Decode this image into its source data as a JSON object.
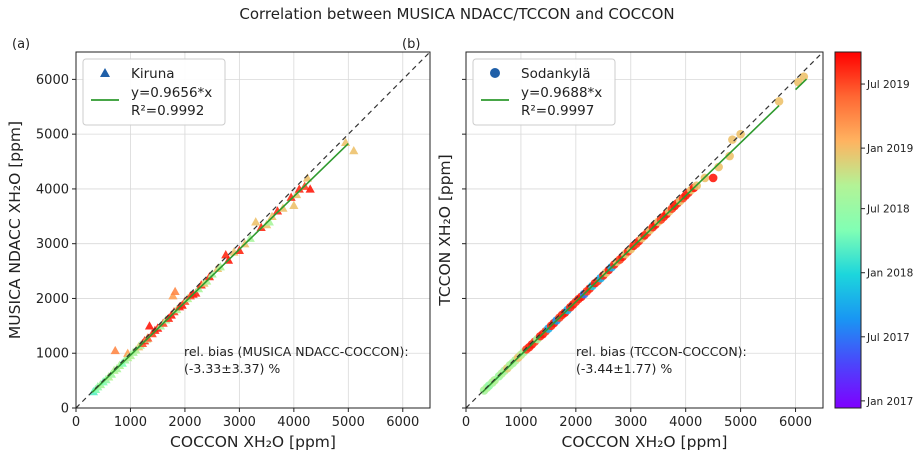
{
  "title": "Correlation between MUSICA NDACC/TCCON and COCCON",
  "chart_data": [
    {
      "type": "scatter",
      "panel_label": "(a)",
      "xlabel": "COCCON XH₂O [ppm]",
      "ylabel": "MUSICA NDACC XH₂O [ppm]",
      "xlim": [
        0,
        6500
      ],
      "ylim": [
        0,
        6500
      ],
      "xticks": [
        "0",
        "1000",
        "2000",
        "3000",
        "4000",
        "5000",
        "6000"
      ],
      "yticks": [
        "0",
        "1000",
        "2000",
        "3000",
        "4000",
        "5000",
        "6000"
      ],
      "grid": true,
      "legend_position": "top-left",
      "marker": "triangle",
      "series_name": "Kiruna",
      "fit_label": "y=0.9656*x",
      "r2_label": "R²=0.9992",
      "slope": 0.9656,
      "fit_range": [
        300,
        5000
      ],
      "identity_line": true,
      "annotation_line1": "rel. bias (MUSICA NDACC-COCCON):",
      "annotation_line2": "(-3.33±3.37) %",
      "points": [
        [
          320,
          300,
          0.45
        ],
        [
          360,
          340,
          0.5
        ],
        [
          400,
          390,
          0.55
        ],
        [
          450,
          430,
          0.6
        ],
        [
          500,
          480,
          0.5
        ],
        [
          550,
          520,
          0.55
        ],
        [
          600,
          570,
          0.62
        ],
        [
          650,
          620,
          0.58
        ],
        [
          700,
          690,
          0.62
        ],
        [
          720,
          1050,
          0.82
        ],
        [
          750,
          720,
          0.6
        ],
        [
          800,
          780,
          0.62
        ],
        [
          850,
          820,
          0.5
        ],
        [
          900,
          880,
          0.58
        ],
        [
          950,
          1000,
          0.78
        ],
        [
          950,
          920,
          0.62
        ],
        [
          1000,
          960,
          0.62
        ],
        [
          1050,
          1020,
          0.6
        ],
        [
          1100,
          1060,
          0.62
        ],
        [
          1150,
          1120,
          0.72
        ],
        [
          1180,
          1150,
          0.6
        ],
        [
          1220,
          1180,
          0.9
        ],
        [
          1260,
          1230,
          0.95
        ],
        [
          1300,
          1260,
          0.65
        ],
        [
          1320,
          1280,
          0.9
        ],
        [
          1350,
          1500,
          0.97
        ],
        [
          1400,
          1360,
          0.92
        ],
        [
          1450,
          1420,
          0.95
        ],
        [
          1500,
          1460,
          0.97
        ],
        [
          1550,
          1500,
          0.6
        ],
        [
          1600,
          1550,
          0.92
        ],
        [
          1650,
          1610,
          0.62
        ],
        [
          1700,
          1640,
          0.95
        ],
        [
          1750,
          1700,
          0.97
        ],
        [
          1780,
          2050,
          0.78
        ],
        [
          1800,
          1760,
          0.92
        ],
        [
          1820,
          2130,
          0.82
        ],
        [
          1850,
          1800,
          0.62
        ],
        [
          1900,
          1850,
          0.95
        ],
        [
          1950,
          1880,
          0.97
        ],
        [
          2000,
          1950,
          0.9
        ],
        [
          2050,
          2000,
          0.62
        ],
        [
          2100,
          2050,
          0.92
        ],
        [
          2150,
          2080,
          0.97
        ],
        [
          2200,
          2100,
          0.95
        ],
        [
          2250,
          2180,
          0.6
        ],
        [
          2300,
          2250,
          0.95
        ],
        [
          2350,
          2280,
          0.72
        ],
        [
          2400,
          2320,
          0.62
        ],
        [
          2450,
          2400,
          0.95
        ],
        [
          2500,
          2450,
          0.6
        ],
        [
          2600,
          2550,
          0.72
        ],
        [
          2650,
          2580,
          0.62
        ],
        [
          2750,
          2800,
          0.95
        ],
        [
          2800,
          2700,
          0.97
        ],
        [
          2900,
          2850,
          0.72
        ],
        [
          3000,
          2880,
          0.95
        ],
        [
          3100,
          3000,
          0.72
        ],
        [
          3200,
          3100,
          0.6
        ],
        [
          3300,
          3400,
          0.72
        ],
        [
          3400,
          3300,
          0.95
        ],
        [
          3500,
          3350,
          0.72
        ],
        [
          3550,
          3400,
          0.6
        ],
        [
          3600,
          3500,
          0.72
        ],
        [
          3700,
          3600,
          0.95
        ],
        [
          3800,
          3650,
          0.72
        ],
        [
          3950,
          3850,
          0.95
        ],
        [
          4000,
          3700,
          0.72
        ],
        [
          4050,
          3900,
          0.72
        ],
        [
          4100,
          4000,
          0.95
        ],
        [
          4200,
          4050,
          0.92
        ],
        [
          4250,
          4200,
          0.72
        ],
        [
          4300,
          4000,
          0.97
        ],
        [
          4950,
          4850,
          0.72
        ],
        [
          5100,
          4700,
          0.72
        ]
      ]
    },
    {
      "type": "scatter",
      "panel_label": "(b)",
      "xlabel": "COCCON XH₂O [ppm]",
      "ylabel": "TCCON XH₂O [ppm]",
      "xlim": [
        0,
        6500
      ],
      "ylim": [
        0,
        6500
      ],
      "xticks": [
        "0",
        "1000",
        "2000",
        "3000",
        "4000",
        "5000",
        "6000"
      ],
      "yticks": [],
      "grid": true,
      "legend_position": "top-left",
      "marker": "circle",
      "series_name": "Sodankylä",
      "fit_label": "y=0.9688*x",
      "r2_label": "R²=0.9997",
      "slope": 0.9688,
      "fit_range": [
        300,
        5700
      ],
      "extra_fit_range": [
        6000,
        6200
      ],
      "identity_line": true,
      "annotation_line1": "rel. bias (TCCON-COCCON):",
      "annotation_line2": "(-3.44±1.77) %",
      "points": [
        [
          330,
          320,
          0.6
        ],
        [
          380,
          370,
          0.62
        ],
        [
          420,
          410,
          0.55
        ],
        [
          480,
          465,
          0.6
        ],
        [
          520,
          505,
          0.62
        ],
        [
          600,
          580,
          0.58
        ],
        [
          650,
          630,
          0.62
        ],
        [
          700,
          680,
          0.6
        ],
        [
          750,
          725,
          0.7
        ],
        [
          800,
          780,
          0.62
        ],
        [
          850,
          820,
          0.6
        ],
        [
          900,
          870,
          0.62
        ],
        [
          950,
          920,
          0.72
        ],
        [
          1000,
          970,
          0.65
        ],
        [
          1050,
          1020,
          0.6
        ],
        [
          1100,
          1070,
          0.92
        ],
        [
          1150,
          1110,
          0.95
        ],
        [
          1200,
          1160,
          0.97
        ],
        [
          1250,
          1210,
          0.92
        ],
        [
          1300,
          1260,
          0.6
        ],
        [
          1350,
          1310,
          0.95
        ],
        [
          1400,
          1350,
          0.97
        ],
        [
          1450,
          1400,
          0.92
        ],
        [
          1500,
          1450,
          0.3
        ],
        [
          1550,
          1500,
          0.95
        ],
        [
          1600,
          1550,
          0.97
        ],
        [
          1650,
          1600,
          0.25
        ],
        [
          1700,
          1650,
          0.92
        ],
        [
          1750,
          1700,
          0.95
        ],
        [
          1800,
          1740,
          0.97
        ],
        [
          1850,
          1790,
          0.3
        ],
        [
          1900,
          1840,
          0.95
        ],
        [
          1950,
          1890,
          0.97
        ],
        [
          2000,
          1940,
          0.92
        ],
        [
          2050,
          1990,
          0.95
        ],
        [
          2100,
          2030,
          0.97
        ],
        [
          2150,
          2080,
          0.2
        ],
        [
          2200,
          2130,
          0.92
        ],
        [
          2250,
          2180,
          0.95
        ],
        [
          2300,
          2230,
          0.35
        ],
        [
          2350,
          2280,
          0.97
        ],
        [
          2400,
          2320,
          0.92
        ],
        [
          2450,
          2370,
          0.3
        ],
        [
          2500,
          2420,
          0.95
        ],
        [
          2550,
          2470,
          0.72
        ],
        [
          2600,
          2520,
          0.97
        ],
        [
          2650,
          2570,
          0.3
        ],
        [
          2700,
          2620,
          0.95
        ],
        [
          2750,
          2670,
          0.72
        ],
        [
          2800,
          2710,
          0.92
        ],
        [
          2850,
          2760,
          0.97
        ],
        [
          2900,
          2810,
          0.72
        ],
        [
          2950,
          2860,
          0.95
        ],
        [
          3000,
          2900,
          0.72
        ],
        [
          3050,
          2960,
          0.97
        ],
        [
          3100,
          3000,
          0.92
        ],
        [
          3150,
          3050,
          0.95
        ],
        [
          3200,
          3100,
          0.72
        ],
        [
          3250,
          3150,
          0.97
        ],
        [
          3300,
          3200,
          0.92
        ],
        [
          3350,
          3250,
          0.72
        ],
        [
          3400,
          3300,
          0.95
        ],
        [
          3450,
          3350,
          0.97
        ],
        [
          3500,
          3400,
          0.72
        ],
        [
          3550,
          3440,
          0.92
        ],
        [
          3600,
          3490,
          0.95
        ],
        [
          3650,
          3540,
          0.97
        ],
        [
          3700,
          3590,
          0.72
        ],
        [
          3750,
          3640,
          0.92
        ],
        [
          3800,
          3690,
          0.97
        ],
        [
          3850,
          3740,
          0.95
        ],
        [
          3900,
          3780,
          0.72
        ],
        [
          3950,
          3830,
          0.92
        ],
        [
          4000,
          3880,
          0.97
        ],
        [
          4050,
          3930,
          0.95
        ],
        [
          4100,
          3980,
          0.72
        ],
        [
          4150,
          4020,
          0.97
        ],
        [
          4200,
          4060,
          0.72
        ],
        [
          4350,
          4200,
          0.72
        ],
        [
          4500,
          4200,
          0.97
        ],
        [
          4600,
          4400,
          0.72
        ],
        [
          4800,
          4600,
          0.72
        ],
        [
          4850,
          4900,
          0.72
        ],
        [
          5000,
          5000,
          0.72
        ],
        [
          5700,
          5600,
          0.72
        ],
        [
          6050,
          5950,
          0.72
        ],
        [
          6150,
          6050,
          0.72
        ]
      ]
    }
  ],
  "colorbar": {
    "labels": [
      "Jul 2019",
      "Jan 2019",
      "Jul 2018",
      "Jan 2018",
      "Jul 2017",
      "Jan 2017"
    ],
    "positions": [
      0.91,
      0.73,
      0.56,
      0.38,
      0.2,
      0.02
    ]
  }
}
